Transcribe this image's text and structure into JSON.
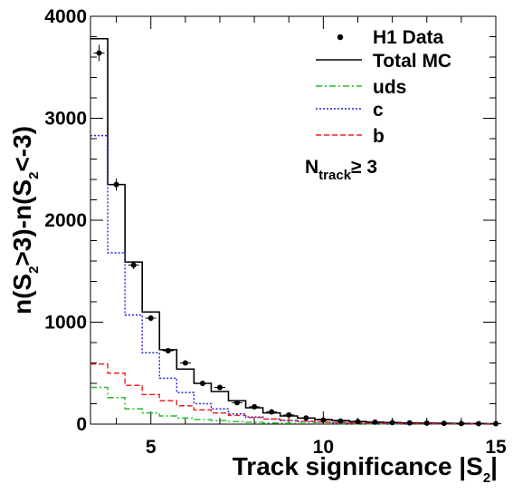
{
  "chart_data": {
    "type": "line",
    "x_label": {
      "main": "Track significance |S",
      "sub": "2",
      "tail": "|"
    },
    "y_label": {
      "p1": "n(S",
      "s1": "2",
      "p2": ">3)-n(S",
      "s2": "2",
      "p3": "<-3)"
    },
    "xlim": [
      3.25,
      15
    ],
    "ylim": [
      0,
      4000
    ],
    "x_ticks": [
      5,
      10,
      15
    ],
    "y_ticks": [
      0,
      1000,
      2000,
      3000,
      4000
    ],
    "annotation": {
      "main": "N",
      "sub": "track",
      "tail": "≥ 3"
    },
    "bin_edges": [
      3.25,
      3.75,
      4.25,
      4.75,
      5.25,
      5.75,
      6.25,
      6.75,
      7.25,
      7.75,
      8.25,
      8.75,
      9.25,
      9.75,
      10.25,
      10.75,
      11.25,
      11.75,
      12.25,
      12.75,
      13.25,
      13.75,
      14.25,
      14.75,
      15
    ],
    "series": [
      {
        "name": "H1 Data",
        "kind": "points",
        "color": "#000000",
        "x": [
          3.5,
          4.0,
          4.5,
          5.0,
          5.5,
          6.0,
          6.5,
          7.0,
          7.5,
          8.0,
          8.5,
          9.0,
          9.5,
          10.0,
          10.5,
          11.0,
          11.5,
          12.0,
          12.5,
          13.0,
          13.5,
          14.0,
          14.5,
          15.0
        ],
        "y": [
          3640,
          2350,
          1560,
          1040,
          720,
          600,
          400,
          360,
          210,
          170,
          120,
          90,
          60,
          40,
          30,
          25,
          20,
          15,
          12,
          10,
          8,
          6,
          5,
          4
        ],
        "yerr": [
          80,
          60,
          40,
          30,
          25,
          20,
          15,
          15,
          12,
          10,
          8,
          7,
          6,
          5,
          5,
          4,
          4,
          3,
          3,
          3,
          2,
          2,
          2,
          2
        ]
      },
      {
        "name": "Total MC",
        "kind": "step",
        "color": "#000000",
        "dash": "",
        "values": [
          3780,
          2350,
          1590,
          1100,
          730,
          540,
          400,
          320,
          230,
          160,
          110,
          80,
          60,
          45,
          35,
          25,
          20,
          15,
          12,
          10,
          8,
          6,
          5,
          4
        ]
      },
      {
        "name": "uds",
        "kind": "step",
        "color": "#22bb22",
        "dash": "7,3,2,3",
        "values": [
          360,
          260,
          150,
          110,
          80,
          60,
          45,
          35,
          25,
          18,
          12,
          9,
          7,
          5,
          4,
          3,
          2,
          2,
          1,
          1,
          1,
          1,
          0,
          0
        ]
      },
      {
        "name": "c",
        "kind": "step",
        "color": "#2222dd",
        "dash": "2,2",
        "values": [
          2830,
          1680,
          1070,
          700,
          450,
          310,
          200,
          150,
          100,
          70,
          50,
          35,
          25,
          18,
          12,
          9,
          6,
          4,
          3,
          2,
          2,
          1,
          1,
          1
        ]
      },
      {
        "name": "b",
        "kind": "step",
        "color": "#ee2222",
        "dash": "6,3",
        "values": [
          590,
          500,
          380,
          290,
          230,
          180,
          140,
          110,
          85,
          65,
          50,
          38,
          28,
          20,
          15,
          11,
          8,
          6,
          5,
          4,
          3,
          2,
          2,
          1
        ]
      }
    ]
  }
}
